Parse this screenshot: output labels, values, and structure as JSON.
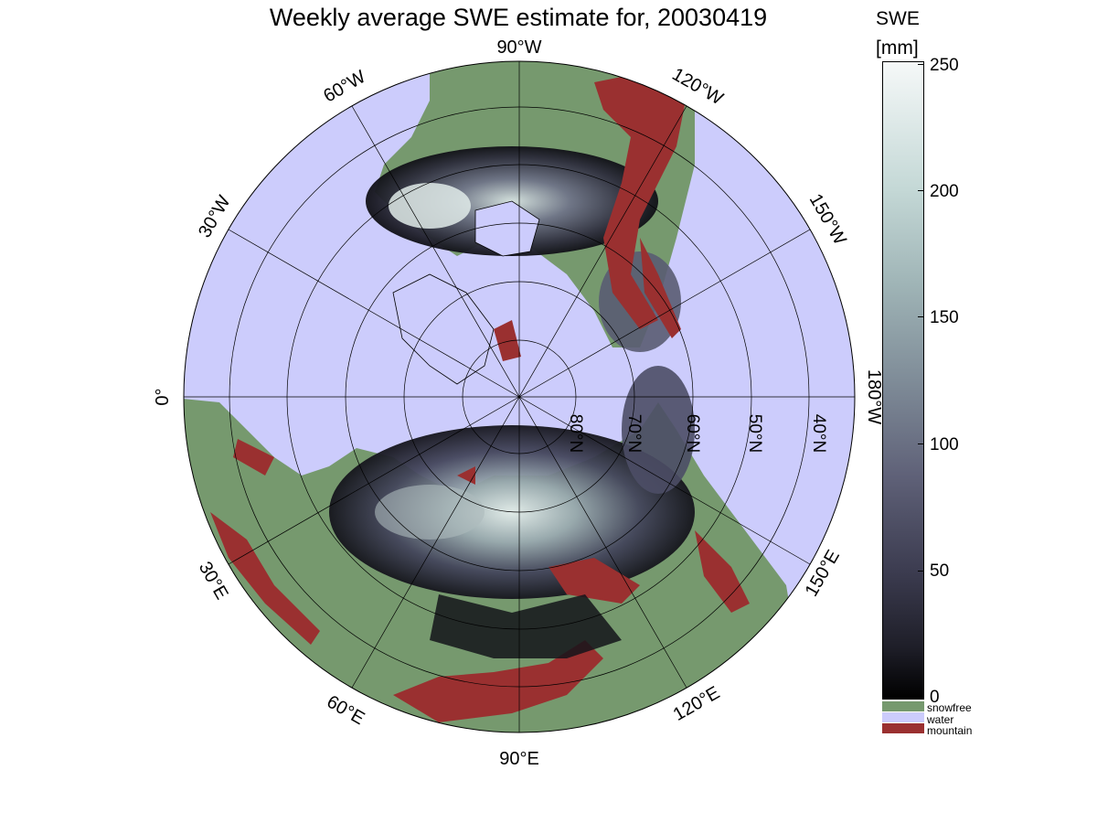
{
  "title": "Weekly average SWE estimate for, 20030419",
  "colorbar": {
    "title": "SWE",
    "unit": "[mm]",
    "ticks": [
      "250",
      "200",
      "150",
      "100",
      "50",
      "0"
    ],
    "range": [
      0,
      250
    ]
  },
  "legend": [
    {
      "label": "snowfree",
      "color": "#76996e"
    },
    {
      "label": "water",
      "color": "#ccccfc"
    },
    {
      "label": "mountain",
      "color": "#9a3030"
    }
  ],
  "longitude_labels": {
    "top": "90°W",
    "top_right_1": "120°W",
    "top_right_2": "150°W",
    "right": "180°W",
    "bottom_right_1": "150°E",
    "bottom_right_2": "120°E",
    "bottom": "90°E",
    "bottom_left_1": "60°E",
    "bottom_left_2": "30°E",
    "left": "0°",
    "top_left_1": "30°W",
    "top_left_2": "60°W"
  },
  "latitude_labels": [
    "80°N",
    "70°N",
    "60°N",
    "50°N",
    "40°N"
  ],
  "colors": {
    "snowfree": "#76996e",
    "water": "#ccccfc",
    "mountain": "#9a3030"
  }
}
